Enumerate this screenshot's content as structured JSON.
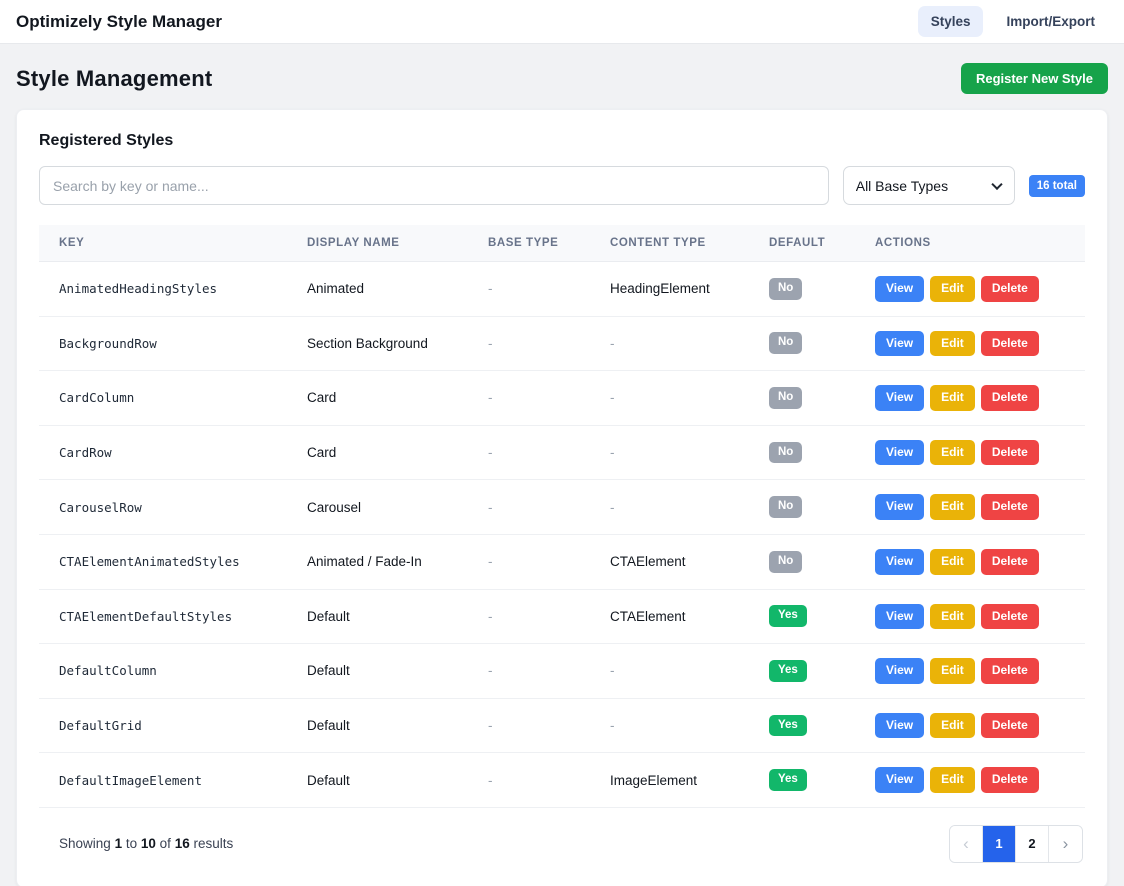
{
  "navbar": {
    "title": "Optimizely Style Manager",
    "tabs": [
      {
        "label": "Styles",
        "active": true
      },
      {
        "label": "Import/Export",
        "active": false
      }
    ]
  },
  "page": {
    "title": "Style Management",
    "register_button_label": "Register New Style"
  },
  "panel": {
    "title": "Registered Styles",
    "search_placeholder": "Search by key or name...",
    "filter_selected": "All Base Types",
    "total_badge": "16 total"
  },
  "table": {
    "headers": [
      "KEY",
      "DISPLAY NAME",
      "BASE TYPE",
      "CONTENT TYPE",
      "DEFAULT",
      "ACTIONS"
    ],
    "action_labels": [
      "View",
      "Edit",
      "Delete"
    ],
    "rows": [
      {
        "key": "AnimatedHeadingStyles",
        "display_name": "Animated",
        "base_type": "-",
        "content_type": "HeadingElement",
        "default": "No"
      },
      {
        "key": "BackgroundRow",
        "display_name": "Section Background",
        "base_type": "-",
        "content_type": "-",
        "default": "No"
      },
      {
        "key": "CardColumn",
        "display_name": "Card",
        "base_type": "-",
        "content_type": "-",
        "default": "No"
      },
      {
        "key": "CardRow",
        "display_name": "Card",
        "base_type": "-",
        "content_type": "-",
        "default": "No"
      },
      {
        "key": "CarouselRow",
        "display_name": "Carousel",
        "base_type": "-",
        "content_type": "-",
        "default": "No"
      },
      {
        "key": "CTAElementAnimatedStyles",
        "display_name": "Animated / Fade-In",
        "base_type": "-",
        "content_type": "CTAElement",
        "default": "No"
      },
      {
        "key": "CTAElementDefaultStyles",
        "display_name": "Default",
        "base_type": "-",
        "content_type": "CTAElement",
        "default": "Yes"
      },
      {
        "key": "DefaultColumn",
        "display_name": "Default",
        "base_type": "-",
        "content_type": "-",
        "default": "Yes"
      },
      {
        "key": "DefaultGrid",
        "display_name": "Default",
        "base_type": "-",
        "content_type": "-",
        "default": "Yes"
      },
      {
        "key": "DefaultImageElement",
        "display_name": "Default",
        "base_type": "-",
        "content_type": "ImageElement",
        "default": "Yes"
      }
    ]
  },
  "footer": {
    "summary": {
      "showing_word": "Showing",
      "from": "1",
      "to_word": "to",
      "to": "10",
      "of_word": "of",
      "total": "16",
      "results_word": "results"
    },
    "pagination": {
      "prev_icon": "‹",
      "next_icon": "›",
      "pages": [
        {
          "label": "1",
          "active": true
        },
        {
          "label": "2",
          "active": false
        }
      ]
    }
  },
  "colors": {
    "primary_blue": "#3b82f6",
    "pagination_active_blue": "#2563eb",
    "register_green": "#16a34a",
    "badge_yes_green": "#12b76a",
    "badge_no_gray": "#9ca3af",
    "edit_yellow": "#eab308",
    "delete_red": "#ef4444",
    "active_tab_bg": "#e9effc",
    "page_background": "#f1f2f4"
  }
}
